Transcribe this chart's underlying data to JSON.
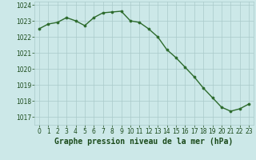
{
  "x": [
    0,
    1,
    2,
    3,
    4,
    5,
    6,
    7,
    8,
    9,
    10,
    11,
    12,
    13,
    14,
    15,
    16,
    17,
    18,
    19,
    20,
    21,
    22,
    23
  ],
  "y": [
    1022.5,
    1022.8,
    1022.9,
    1023.2,
    1023.0,
    1022.7,
    1023.2,
    1023.5,
    1023.55,
    1023.6,
    1023.0,
    1022.9,
    1022.5,
    1022.0,
    1021.2,
    1020.7,
    1020.1,
    1019.5,
    1018.8,
    1018.2,
    1017.6,
    1017.35,
    1017.5,
    1017.8
  ],
  "line_color": "#2d6b2d",
  "marker_color": "#2d6b2d",
  "bg_color": "#cce8e8",
  "grid_color": "#aacaca",
  "xlabel": "Graphe pression niveau de la mer (hPa)",
  "ylim": [
    1016.5,
    1024.2
  ],
  "xlim": [
    -0.5,
    23.5
  ],
  "yticks": [
    1017,
    1018,
    1019,
    1020,
    1021,
    1022,
    1023,
    1024
  ],
  "xticks": [
    0,
    1,
    2,
    3,
    4,
    5,
    6,
    7,
    8,
    9,
    10,
    11,
    12,
    13,
    14,
    15,
    16,
    17,
    18,
    19,
    20,
    21,
    22,
    23
  ],
  "xlabel_color": "#1a4a1a",
  "xlabel_fontsize": 7,
  "xlabel_fontweight": "bold",
  "tick_fontsize": 5.5,
  "tick_color": "#1a4a1a",
  "line_width": 1.0,
  "marker_size": 2.2
}
